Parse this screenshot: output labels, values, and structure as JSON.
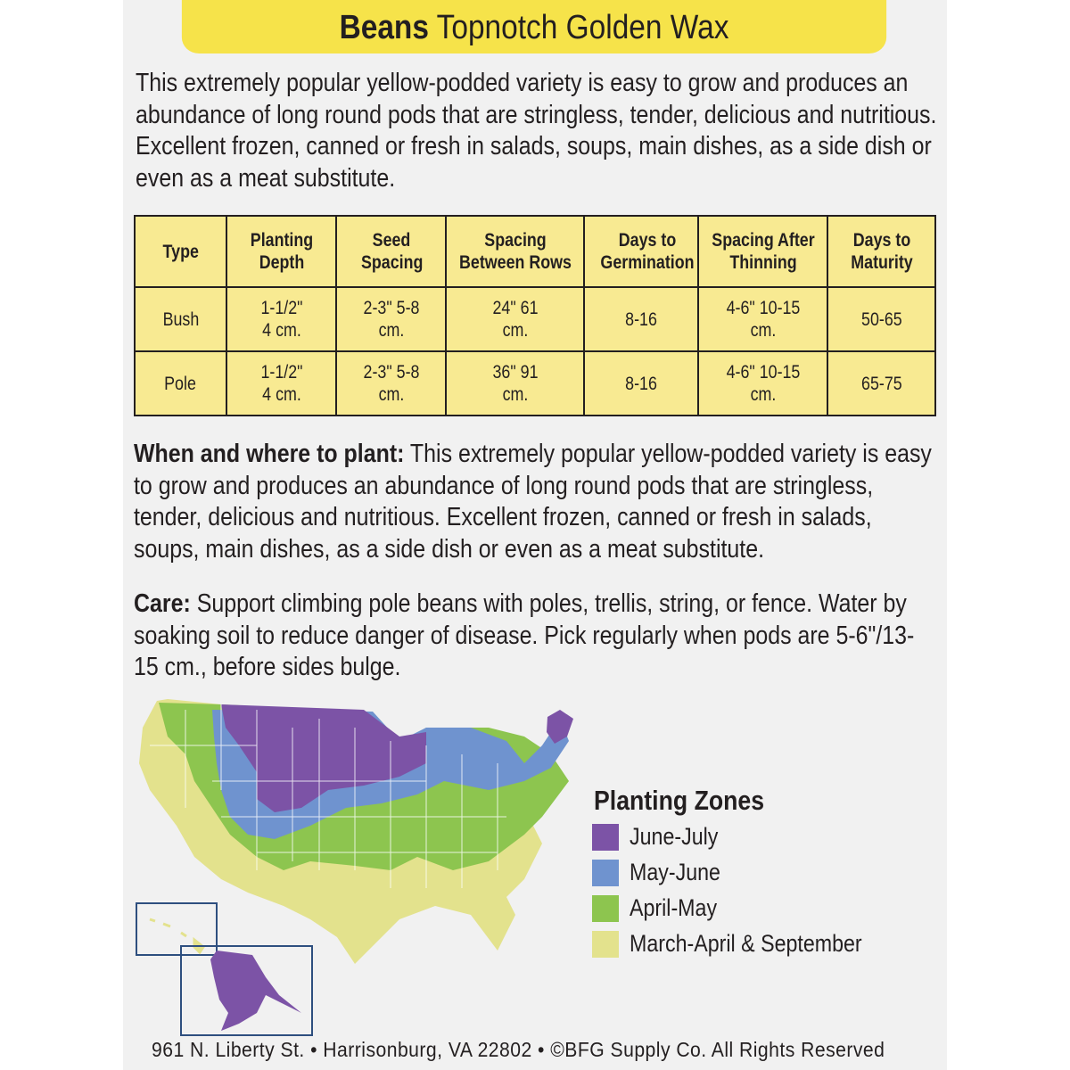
{
  "header": {
    "title_bold": "Beans",
    "title_rest": "Topnotch Golden Wax"
  },
  "intro": "This extremely popular yellow-podded variety is easy to grow and produces an abundance of long round pods that are stringless, tender, delicious and nutritious. Excellent frozen, canned or fresh in salads, soups, main dishes, as a side dish or even as a meat substitute.",
  "table": {
    "headers": [
      "Type",
      "Planting Depth",
      "Seed Spacing",
      "Spacing Between Rows",
      "Days to Germination",
      "Spacing After Thinning",
      "Days to Maturity"
    ],
    "rows": [
      [
        "Bush",
        "1-1/2\" 4 cm.",
        "2-3\" 5-8 cm.",
        "24\" 61 cm.",
        "8-16",
        "4-6\" 10-15 cm.",
        "50-65"
      ],
      [
        "Pole",
        "1-1/2\" 4 cm.",
        "2-3\" 5-8 cm.",
        "36\" 91 cm.",
        "8-16",
        "4-6\" 10-15 cm.",
        "65-75"
      ]
    ]
  },
  "when": {
    "label": "When and where to plant:",
    "text": " This extremely popular yellow-podded variety is easy to grow and produces an abundance of long round pods that are stringless, tender, delicious and nutritious. Excellent frozen, canned or fresh in salads, soups, main dishes, as a side dish or even as a meat substitute."
  },
  "care": {
    "label": "Care:",
    "text": " Support climbing pole beans with poles, trellis, string, or fence. Water by soaking soil to reduce danger of disease. Pick regularly when pods are 5-6\"/13-15 cm., before sides bulge."
  },
  "legend": {
    "title": "Planting Zones",
    "items": [
      {
        "label": "June-July",
        "color": "#7c53a6"
      },
      {
        "label": "May-June",
        "color": "#6f93cf"
      },
      {
        "label": "April-May",
        "color": "#8dc54f"
      },
      {
        "label": "March-April & September",
        "color": "#e3e28d"
      }
    ]
  },
  "footer": "961 N. Liberty St. • Harrisonburg, VA 22802 • ©BFG Supply Co. All Rights Reserved"
}
